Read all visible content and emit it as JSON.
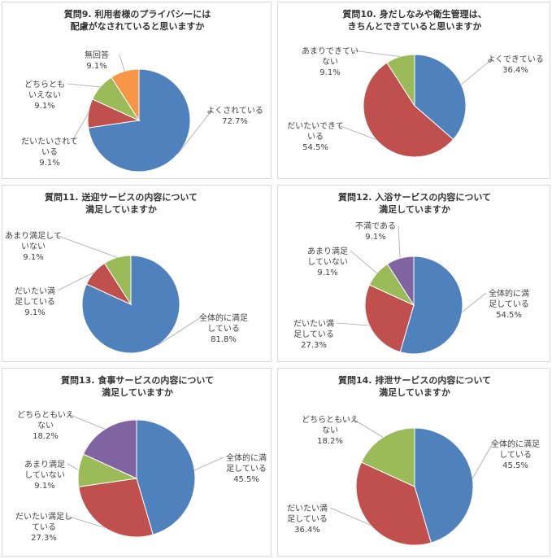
{
  "chart_data": [
    {
      "type": "pie",
      "title": [
        "質問9. 利用者様のプライバシーには",
        "配慮がなされていると思いますか"
      ],
      "slices": [
        {
          "label": [
            "よくされている"
          ],
          "pct": "72.7%",
          "value": 72.7,
          "color": "#4f81bd"
        },
        {
          "label": [
            "だいたいされて",
            "いる"
          ],
          "pct": "9.1%",
          "value": 9.1,
          "color": "#c0504d"
        },
        {
          "label": [
            "どちらとも",
            "いえない"
          ],
          "pct": "9.1%",
          "value": 9.1,
          "color": "#9bbb59"
        },
        {
          "label": [
            "無回答"
          ],
          "pct": "9.1%",
          "value": 9.1,
          "color": "#f79646"
        }
      ]
    },
    {
      "type": "pie",
      "title": [
        "質問10. 身だしなみや衛生管理は、",
        "きちんとできていると思いますか"
      ],
      "slices": [
        {
          "label": [
            "よくできている"
          ],
          "pct": "36.4%",
          "value": 36.4,
          "color": "#4f81bd"
        },
        {
          "label": [
            "だいたいできて",
            "いる"
          ],
          "pct": "54.5%",
          "value": 54.5,
          "color": "#c0504d"
        },
        {
          "label": [
            "あまりできてい",
            "ない"
          ],
          "pct": "9.1%",
          "value": 9.1,
          "color": "#9bbb59"
        }
      ]
    },
    {
      "type": "pie",
      "title": [
        "質問11. 送迎サービスの内容について",
        "満足していますか"
      ],
      "slices": [
        {
          "label": [
            "全体的に満足",
            "している"
          ],
          "pct": "81.8%",
          "value": 81.8,
          "color": "#4f81bd"
        },
        {
          "label": [
            "だいたい満",
            "足している"
          ],
          "pct": "9.1%",
          "value": 9.1,
          "color": "#c0504d"
        },
        {
          "label": [
            "あまり満足して",
            "いない"
          ],
          "pct": "9.1%",
          "value": 9.1,
          "color": "#9bbb59"
        }
      ]
    },
    {
      "type": "pie",
      "title": [
        "質問12. 入浴サービスの内容について",
        "満足していますか"
      ],
      "slices": [
        {
          "label": [
            "全体的に満",
            "足している"
          ],
          "pct": "54.5%",
          "value": 54.5,
          "color": "#4f81bd"
        },
        {
          "label": [
            "だいたい満",
            "足している"
          ],
          "pct": "27.3%",
          "value": 27.3,
          "color": "#c0504d"
        },
        {
          "label": [
            "あまり満足",
            "していない"
          ],
          "pct": "9.1%",
          "value": 9.1,
          "color": "#9bbb59"
        },
        {
          "label": [
            "不満である"
          ],
          "pct": "9.1%",
          "value": 9.1,
          "color": "#8064a2"
        }
      ]
    },
    {
      "type": "pie",
      "title": [
        "質問13. 食事サービスの内容について",
        "満足していますか"
      ],
      "slices": [
        {
          "label": [
            "全体的に満",
            "足している"
          ],
          "pct": "45.5%",
          "value": 45.5,
          "color": "#4f81bd"
        },
        {
          "label": [
            "だいたい満足し",
            "ている"
          ],
          "pct": "27.3%",
          "value": 27.3,
          "color": "#c0504d"
        },
        {
          "label": [
            "あまり満足",
            "していない"
          ],
          "pct": "9.1%",
          "value": 9.1,
          "color": "#9bbb59"
        },
        {
          "label": [
            "どちらともいえ",
            "ない"
          ],
          "pct": "18.2%",
          "value": 18.2,
          "color": "#8064a2"
        }
      ]
    },
    {
      "type": "pie",
      "title": [
        "質問14. 排泄サービスの内容について",
        "満足していますか"
      ],
      "slices": [
        {
          "label": [
            "全体的に満足",
            "している"
          ],
          "pct": "45.5%",
          "value": 45.5,
          "color": "#4f81bd"
        },
        {
          "label": [
            "だいたい満",
            "足している"
          ],
          "pct": "36.4%",
          "value": 36.4,
          "color": "#c0504d"
        },
        {
          "label": [
            "どちらともいえ",
            "ない"
          ],
          "pct": "18.2%",
          "value": 18.2,
          "color": "#9bbb59"
        }
      ]
    }
  ]
}
